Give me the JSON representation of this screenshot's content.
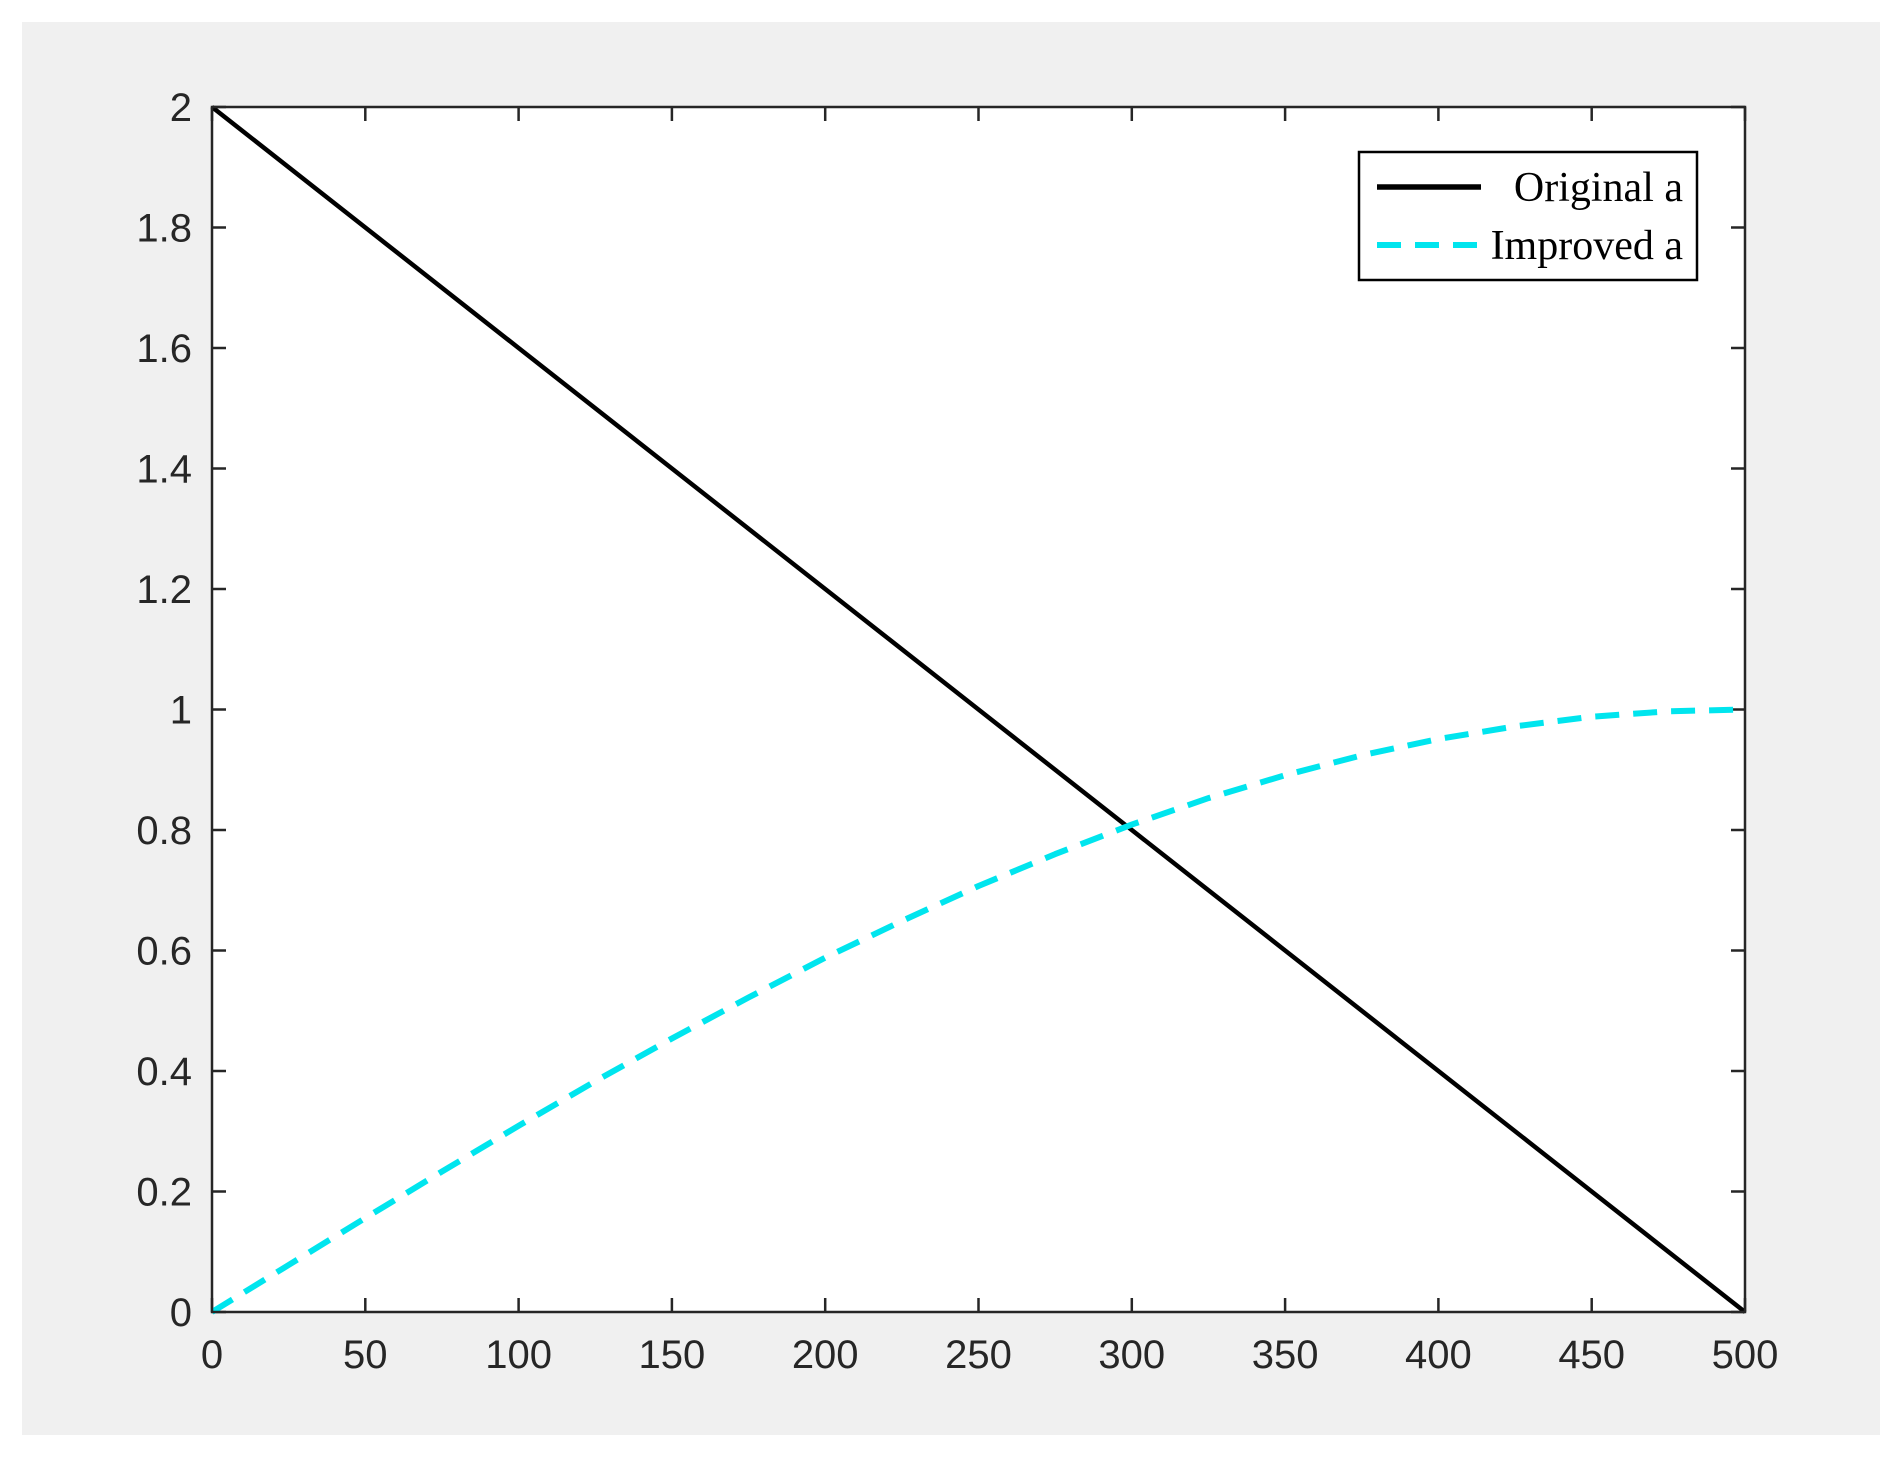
{
  "chart_data": {
    "type": "line",
    "title": "",
    "xlabel": "",
    "ylabel": "",
    "xlim": [
      0,
      500
    ],
    "ylim": [
      0,
      2
    ],
    "x_ticks": [
      0,
      50,
      100,
      150,
      200,
      250,
      300,
      350,
      400,
      450,
      500
    ],
    "y_ticks": [
      0,
      0.2,
      0.4,
      0.6,
      0.8,
      1,
      1.2,
      1.4,
      1.6,
      1.8,
      2
    ],
    "x_tick_labels": [
      "0",
      "50",
      "100",
      "150",
      "200",
      "250",
      "300",
      "350",
      "400",
      "450",
      "500"
    ],
    "y_tick_labels": [
      "0",
      "0.2",
      "0.4",
      "0.6",
      "0.8",
      "1",
      "1.2",
      "1.4",
      "1.6",
      "1.8",
      "2"
    ],
    "grid": false,
    "box": true,
    "legend": {
      "position": "top-right"
    },
    "series": [
      {
        "name": "Original a",
        "color": "#000000",
        "style": "solid",
        "x": [
          0,
          50,
          100,
          150,
          200,
          250,
          300,
          350,
          400,
          450,
          500
        ],
        "y": [
          2.0,
          1.8,
          1.6,
          1.4,
          1.2,
          1.0,
          0.8,
          0.6,
          0.4,
          0.2,
          0.0
        ]
      },
      {
        "name": "Improved a",
        "color": "#00e5ee",
        "style": "dashed",
        "x": [
          0,
          25,
          50,
          75,
          100,
          125,
          150,
          175,
          200,
          225,
          250,
          275,
          300,
          325,
          350,
          375,
          400,
          425,
          450,
          475,
          500
        ],
        "y": [
          0.0,
          0.078,
          0.156,
          0.233,
          0.309,
          0.383,
          0.454,
          0.522,
          0.588,
          0.649,
          0.707,
          0.76,
          0.809,
          0.853,
          0.891,
          0.924,
          0.951,
          0.972,
          0.988,
          0.997,
          1.0
        ]
      }
    ]
  }
}
